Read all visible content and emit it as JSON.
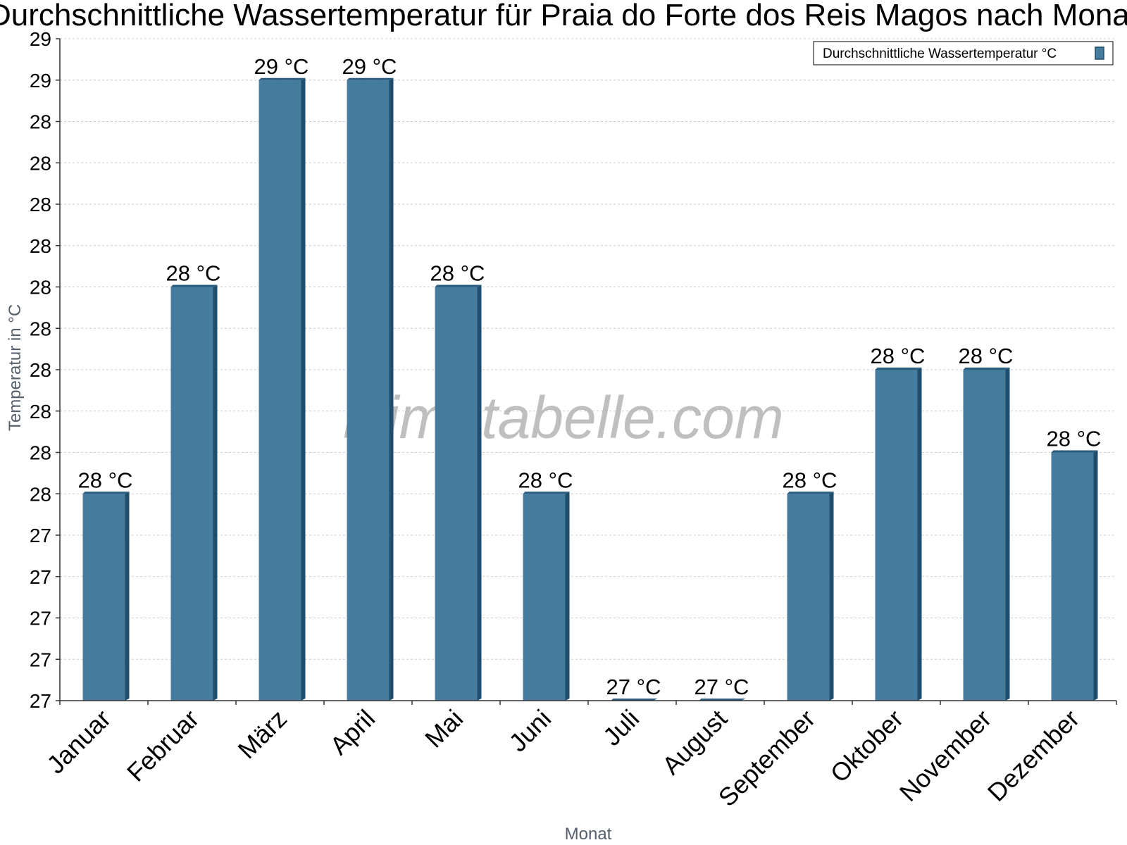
{
  "chart_data": {
    "type": "bar",
    "title": "Durchschnittliche Wassertemperatur für Praia do Forte dos Reis Magos nach Monat",
    "xlabel": "Monat",
    "ylabel": "Temperatur in °C",
    "categories": [
      "Januar",
      "Februar",
      "März",
      "April",
      "Mai",
      "Juni",
      "Juli",
      "August",
      "September",
      "Oktober",
      "November",
      "Dezember"
    ],
    "series": [
      {
        "name": "Durchschnittliche Wassertemperatur °C",
        "values": [
          27.5,
          28.0,
          28.5,
          28.5,
          28.0,
          27.5,
          27.0,
          27.0,
          27.5,
          27.8,
          27.8,
          27.6
        ],
        "value_labels": [
          "28 °C",
          "28 °C",
          "29 °C",
          "29 °C",
          "28 °C",
          "28 °C",
          "27 °C",
          "27 °C",
          "28 °C",
          "28 °C",
          "28 °C",
          "28 °C"
        ]
      }
    ],
    "ylim": [
      27.0,
      28.6
    ],
    "yticks": [
      27.0,
      27.1,
      27.2,
      27.3,
      27.4,
      27.5,
      27.6,
      27.7,
      27.8,
      27.9,
      28.0,
      28.1,
      28.2,
      28.3,
      28.4,
      28.5,
      28.6
    ],
    "ytick_labels": [
      "27",
      "27",
      "27",
      "27",
      "27",
      "28",
      "28",
      "28",
      "28",
      "28",
      "28",
      "28",
      "28",
      "28",
      "28",
      "29",
      "29"
    ],
    "grid": true,
    "legend_position": "top-right",
    "colors": {
      "bar": "#457b9d",
      "bar_side": "#1f4e6e",
      "bar_top": "#2a5c80",
      "grid": "#cccccc"
    },
    "watermark": "klimatabelle.com"
  }
}
